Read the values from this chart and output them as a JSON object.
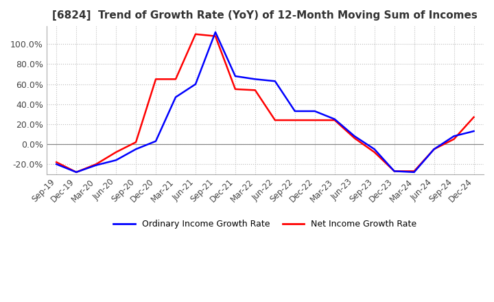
{
  "title": "[6824]  Trend of Growth Rate (YoY) of 12-Month Moving Sum of Incomes",
  "title_fontsize": 11,
  "legend_labels": [
    "Ordinary Income Growth Rate",
    "Net Income Growth Rate"
  ],
  "legend_colors": [
    "#0000FF",
    "#FF0000"
  ],
  "ylim": [
    -30,
    118
  ],
  "yticks": [
    -20,
    0,
    20,
    40,
    60,
    80,
    100
  ],
  "background_color": "#FFFFFF",
  "grid_color": "#AAAAAA",
  "x_labels": [
    "Sep-19",
    "Dec-19",
    "Mar-20",
    "Jun-20",
    "Sep-20",
    "Dec-20",
    "Mar-21",
    "Jun-21",
    "Sep-21",
    "Dec-21",
    "Mar-22",
    "Jun-22",
    "Sep-22",
    "Dec-22",
    "Mar-23",
    "Jun-23",
    "Sep-23",
    "Dec-23",
    "Mar-24",
    "Jun-24",
    "Sep-24",
    "Dec-24"
  ],
  "ordinary_income": [
    -20,
    -28,
    -21,
    -16,
    -5,
    3,
    47,
    60,
    112,
    68,
    65,
    63,
    33,
    33,
    25,
    8,
    -5,
    -27,
    -28,
    -5,
    8,
    13
  ],
  "net_income": [
    -18,
    -28,
    -20,
    -8,
    2,
    65,
    65,
    110,
    108,
    55,
    54,
    24,
    24,
    24,
    24,
    6,
    -8,
    -27,
    -27,
    -5,
    5,
    27
  ]
}
